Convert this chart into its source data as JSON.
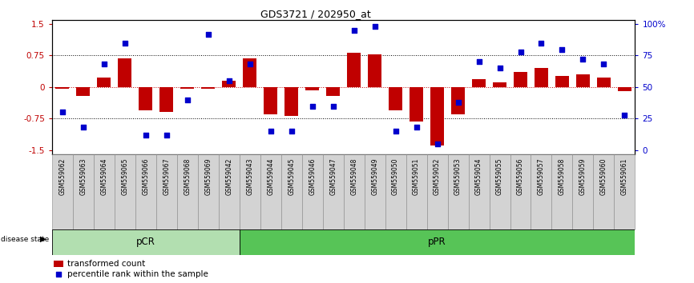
{
  "title": "GDS3721 / 202950_at",
  "samples": [
    "GSM559062",
    "GSM559063",
    "GSM559064",
    "GSM559065",
    "GSM559066",
    "GSM559067",
    "GSM559068",
    "GSM559069",
    "GSM559042",
    "GSM559043",
    "GSM559044",
    "GSM559045",
    "GSM559046",
    "GSM559047",
    "GSM559048",
    "GSM559049",
    "GSM559050",
    "GSM559051",
    "GSM559052",
    "GSM559053",
    "GSM559054",
    "GSM559055",
    "GSM559056",
    "GSM559057",
    "GSM559058",
    "GSM559059",
    "GSM559060",
    "GSM559061"
  ],
  "transformed_count": [
    -0.05,
    -0.22,
    0.22,
    0.68,
    -0.55,
    -0.6,
    -0.05,
    -0.05,
    0.15,
    0.68,
    -0.65,
    -0.68,
    -0.08,
    -0.22,
    0.82,
    0.78,
    -0.55,
    -0.82,
    -1.4,
    -0.65,
    0.18,
    0.12,
    0.35,
    0.45,
    0.27,
    0.3,
    0.22,
    -0.1
  ],
  "percentile_rank": [
    30,
    18,
    68,
    85,
    12,
    12,
    40,
    92,
    55,
    68,
    15,
    15,
    35,
    35,
    95,
    98,
    15,
    18,
    5,
    38,
    70,
    65,
    78,
    85,
    80,
    72,
    68,
    28
  ],
  "pCR_count": 9,
  "bar_color": "#c00000",
  "dot_color": "#0000cc",
  "ylim": [
    -1.6,
    1.6
  ],
  "yticks_left": [
    -1.5,
    -0.75,
    0,
    0.75,
    1.5
  ],
  "yticks_right": [
    0,
    25,
    50,
    75,
    100
  ],
  "pCR_color": "#b2dfb0",
  "pPR_color": "#57c457",
  "label_color_red": "#c00000",
  "label_color_blue": "#0000cc"
}
